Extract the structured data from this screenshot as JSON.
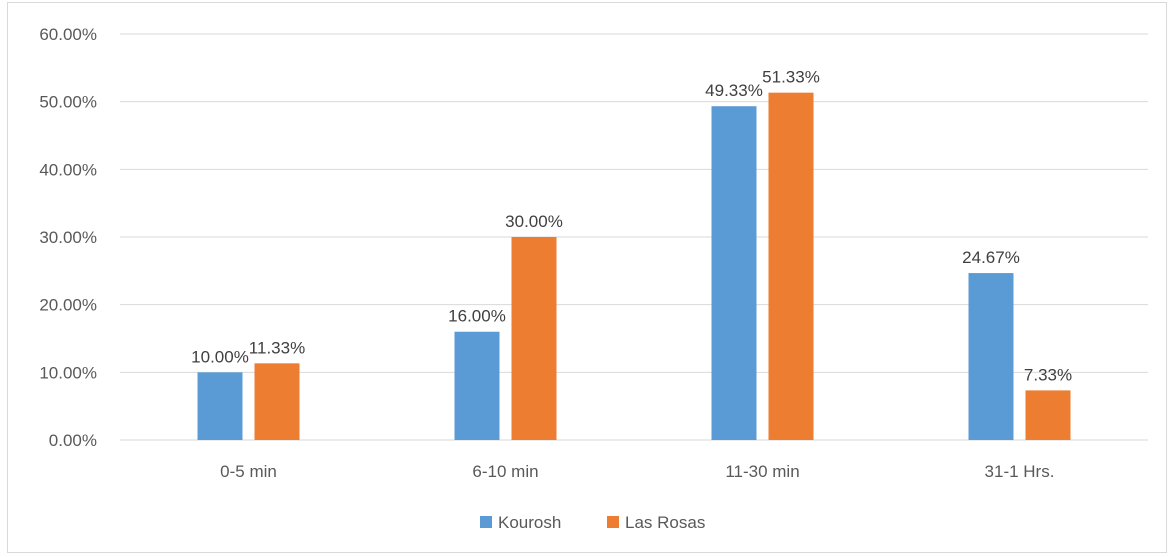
{
  "chart_data": {
    "type": "bar",
    "categories": [
      "0-5 min",
      "6-10 min",
      "11-30 min",
      "31-1 Hrs."
    ],
    "series": [
      {
        "name": "Kourosh",
        "color": "#5b9bd5",
        "values": [
          10.0,
          16.0,
          49.33,
          24.67
        ],
        "labels": [
          "10.00%",
          "16.00%",
          "49.33%",
          "24.67%"
        ]
      },
      {
        "name": "Las Rosas",
        "color": "#ed7d31",
        "values": [
          11.33,
          30.0,
          51.33,
          7.33
        ],
        "labels": [
          "11.33%",
          "30.00%",
          "51.33%",
          "7.33%"
        ]
      }
    ],
    "ylim": [
      0,
      60
    ],
    "yticks": [
      0,
      10,
      20,
      30,
      40,
      50,
      60
    ],
    "ytick_labels": [
      "0.00%",
      "10.00%",
      "20.00%",
      "30.00%",
      "40.00%",
      "50.00%",
      "60.00%"
    ],
    "grid": true,
    "gridline_color": "#d9d9d9",
    "legend_position": "bottom",
    "title": "",
    "xlabel": "",
    "ylabel": ""
  }
}
